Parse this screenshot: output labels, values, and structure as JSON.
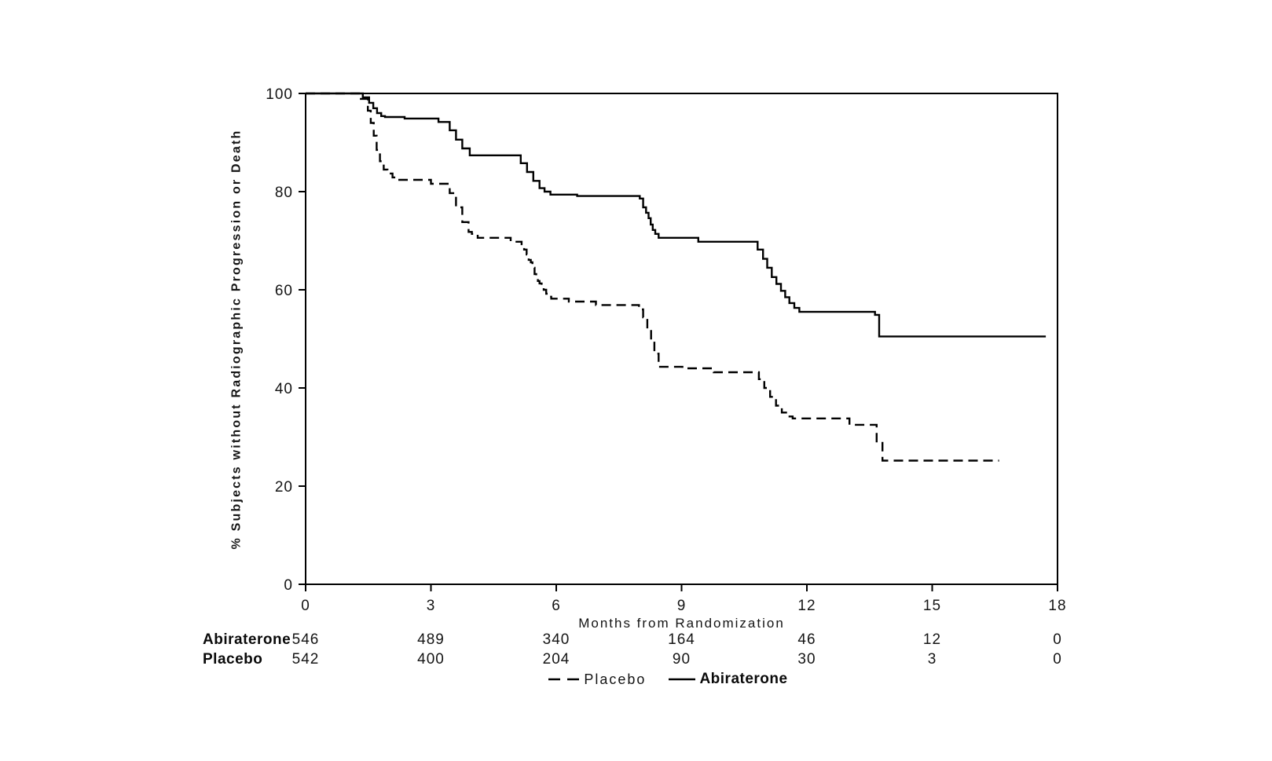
{
  "chart_data": {
    "type": "line",
    "variant": "kaplan-meier-step",
    "title": "",
    "xlabel": "Months from Randomization",
    "ylabel": "% Subjects without Radiographic Progression or Death",
    "xlim": [
      0,
      18
    ],
    "ylim": [
      0,
      100
    ],
    "xticks": [
      0,
      3,
      6,
      9,
      12,
      15,
      18
    ],
    "yticks": [
      0,
      20,
      40,
      60,
      80,
      100
    ],
    "grid": false,
    "colors": {
      "line": "#000000",
      "background": "#ffffff"
    },
    "series": [
      {
        "name": "Abiraterone",
        "line": "solid",
        "steps": [
          [
            0,
            100
          ],
          [
            1.37,
            99.2
          ],
          [
            1.52,
            98.1
          ],
          [
            1.62,
            97
          ],
          [
            1.71,
            96
          ],
          [
            1.81,
            95.4
          ],
          [
            1.9,
            95.2
          ],
          [
            2.37,
            94.9
          ],
          [
            3.18,
            94.2
          ],
          [
            3.45,
            92.5
          ],
          [
            3.6,
            90.6
          ],
          [
            3.75,
            88.8
          ],
          [
            3.93,
            87.4
          ],
          [
            5.15,
            85.8
          ],
          [
            5.3,
            84
          ],
          [
            5.45,
            82.2
          ],
          [
            5.6,
            80.7
          ],
          [
            5.72,
            80
          ],
          [
            5.86,
            79.4
          ],
          [
            6.5,
            79.1
          ],
          [
            8.0,
            78.6
          ],
          [
            8.08,
            76.8
          ],
          [
            8.15,
            75.7
          ],
          [
            8.21,
            74.6
          ],
          [
            8.26,
            73.3
          ],
          [
            8.31,
            72.2
          ],
          [
            8.37,
            71.4
          ],
          [
            8.45,
            70.6
          ],
          [
            9.4,
            69.8
          ],
          [
            10.82,
            68.2
          ],
          [
            10.95,
            66.3
          ],
          [
            11.05,
            64.5
          ],
          [
            11.16,
            62.6
          ],
          [
            11.27,
            61.2
          ],
          [
            11.38,
            59.8
          ],
          [
            11.48,
            58.5
          ],
          [
            11.58,
            57.3
          ],
          [
            11.7,
            56.3
          ],
          [
            11.82,
            55.5
          ],
          [
            13.63,
            54.9
          ],
          [
            13.73,
            50.5
          ],
          [
            17.72,
            50.5
          ]
        ]
      },
      {
        "name": "Placebo",
        "line": "dashed",
        "steps": [
          [
            0,
            100
          ],
          [
            1.3,
            98.9
          ],
          [
            1.49,
            96.5
          ],
          [
            1.56,
            94
          ],
          [
            1.63,
            91.4
          ],
          [
            1.7,
            88.5
          ],
          [
            1.78,
            86.2
          ],
          [
            1.87,
            84.5
          ],
          [
            1.96,
            83.7
          ],
          [
            2.08,
            82.9
          ],
          [
            2.16,
            82.4
          ],
          [
            3.0,
            81.6
          ],
          [
            3.45,
            79.7
          ],
          [
            3.6,
            76.8
          ],
          [
            3.75,
            73.8
          ],
          [
            3.9,
            71.8
          ],
          [
            3.98,
            71.4
          ],
          [
            4.12,
            70.6
          ],
          [
            4.91,
            69.8
          ],
          [
            5.17,
            69
          ],
          [
            5.23,
            68.2
          ],
          [
            5.29,
            67.2
          ],
          [
            5.34,
            66.1
          ],
          [
            5.39,
            65.6
          ],
          [
            5.43,
            64.5
          ],
          [
            5.48,
            63.2
          ],
          [
            5.52,
            62.4
          ],
          [
            5.56,
            61.8
          ],
          [
            5.6,
            61.3
          ],
          [
            5.65,
            60.8
          ],
          [
            5.7,
            60
          ],
          [
            5.76,
            59.2
          ],
          [
            5.82,
            58.6
          ],
          [
            5.88,
            58.2
          ],
          [
            6.3,
            57.6
          ],
          [
            6.95,
            56.9
          ],
          [
            7.98,
            56
          ],
          [
            8.08,
            54.4
          ],
          [
            8.18,
            52
          ],
          [
            8.27,
            49.5
          ],
          [
            8.35,
            47
          ],
          [
            8.45,
            44.3
          ],
          [
            9.02,
            44
          ],
          [
            9.77,
            43.2
          ],
          [
            10.85,
            41.8
          ],
          [
            10.98,
            40
          ],
          [
            11.12,
            38.2
          ],
          [
            11.26,
            36.4
          ],
          [
            11.4,
            35
          ],
          [
            11.55,
            34.2
          ],
          [
            11.66,
            33.8
          ],
          [
            13.02,
            32.5
          ],
          [
            13.67,
            28.8
          ],
          [
            13.81,
            25.2
          ],
          [
            16.6,
            25.2
          ]
        ]
      }
    ],
    "at_risk": {
      "rows": [
        {
          "label": "Abiraterone",
          "counts": [
            "546",
            "489",
            "340",
            "164",
            "46",
            "12",
            "0"
          ]
        },
        {
          "label": "Placebo",
          "counts": [
            "542",
            "400",
            "204",
            "90",
            "30",
            "3",
            "0"
          ]
        }
      ]
    },
    "legend": [
      {
        "label": "Placebo",
        "line": "dashed"
      },
      {
        "label": "Abiraterone",
        "line": "solid"
      }
    ],
    "legend_position": "bottom-center"
  }
}
